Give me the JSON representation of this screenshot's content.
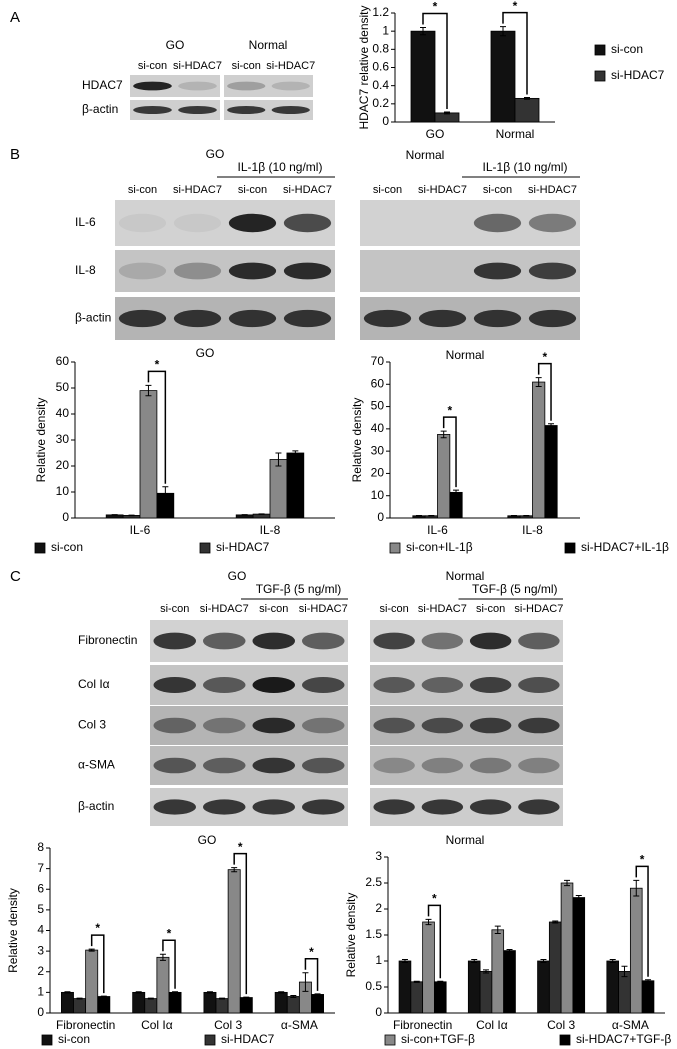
{
  "figure": {
    "panels": [
      "A",
      "B",
      "C"
    ],
    "blots": [
      {
        "groups": [
          {
            "label": "GO",
            "lanes": [
              "si-con",
              "si-HDAC7"
            ]
          },
          {
            "label": "Normal",
            "lanes": [
              "si-con",
              "si-HDAC7"
            ]
          }
        ],
        "rows": [
          "HDAC7",
          "β-actin"
        ]
      },
      {
        "groups": [
          {
            "label": "GO",
            "treatment": "IL-1β (10 ng/ml)",
            "lanes": [
              "si-con",
              "si-HDAC7",
              "si-con",
              "si-HDAC7"
            ]
          },
          {
            "label": "Normal",
            "treatment": "IL-1β (10 ng/ml)",
            "lanes": [
              "si-con",
              "si-HDAC7",
              "si-con",
              "si-HDAC7"
            ]
          }
        ],
        "rows": [
          "IL-6",
          "IL-8",
          "β-actin"
        ]
      },
      {
        "groups": [
          {
            "label": "GO",
            "treatment": "TGF-β (5 ng/ml)",
            "lanes": [
              "si-con",
              "si-HDAC7",
              "si-con",
              "si-HDAC7"
            ]
          },
          {
            "label": "Normal",
            "treatment": "TGF-β (5 ng/ml)",
            "lanes": [
              "si-con",
              "si-HDAC7",
              "si-con",
              "si-HDAC7"
            ]
          }
        ],
        "rows": [
          "Fibronectin",
          "Col Iα",
          "Col 3",
          "α-SMA",
          "β-actin"
        ]
      }
    ]
  },
  "chart_data": [
    {
      "type": "bar",
      "y_label": "HDAC7 relative density",
      "categories": [
        "GO",
        "Normal"
      ],
      "series": [
        {
          "name": "si-con",
          "color": "#111111",
          "values": [
            1.0,
            1.0
          ],
          "errors": [
            0.04,
            0.05
          ],
          "in_legend": true
        },
        {
          "name": "si-HDAC7",
          "color": "#333333",
          "values": [
            0.1,
            0.26
          ],
          "errors": [
            0.01,
            0.01
          ],
          "in_legend": true
        }
      ],
      "ylim": [
        0,
        1.2
      ],
      "yticks": [
        0,
        0.2,
        0.4,
        0.6,
        0.8,
        1,
        1.2
      ],
      "significance": [
        "*",
        "*"
      ]
    },
    {
      "type": "bar",
      "title": "GO",
      "y_label": "Relative density",
      "categories": [
        "IL-6",
        "IL-8"
      ],
      "series": [
        {
          "name": "si-con",
          "color": "#111111",
          "values": [
            1.2,
            1.2
          ],
          "errors": [
            0.1,
            0.1
          ],
          "in_legend": true
        },
        {
          "name": "si-HDAC7",
          "color": "#333333",
          "values": [
            1.0,
            1.5
          ],
          "errors": [
            0.1,
            0.1
          ],
          "in_legend": true
        },
        {
          "name": "si-con+IL-1β",
          "color": "#888888",
          "values": [
            49,
            22.5
          ],
          "errors": [
            2,
            2.5
          ],
          "in_legend": false
        },
        {
          "name": "si-HDAC7+IL-1β",
          "color": "#000000",
          "values": [
            9.5,
            25
          ],
          "errors": [
            2.5,
            0.8
          ],
          "in_legend": false
        }
      ],
      "ylim": [
        0,
        60
      ],
      "yticks": [
        0,
        10,
        20,
        30,
        40,
        50,
        60
      ],
      "significance": [
        "*",
        null
      ]
    },
    {
      "type": "bar",
      "title": "Normal",
      "y_label": "Relative density",
      "categories": [
        "IL-6",
        "IL-8"
      ],
      "series": [
        {
          "name": "si-con",
          "color": "#111111",
          "values": [
            1,
            1
          ],
          "errors": [
            0.1,
            0.1
          ],
          "in_legend": false
        },
        {
          "name": "si-HDAC7",
          "color": "#333333",
          "values": [
            1,
            1
          ],
          "errors": [
            0.1,
            0.1
          ],
          "in_legend": false
        },
        {
          "name": "si-con+IL-1β",
          "color": "#888888",
          "values": [
            37.5,
            61
          ],
          "errors": [
            1.5,
            2
          ],
          "in_legend": true
        },
        {
          "name": "si-HDAC7+IL-1β",
          "color": "#000000",
          "values": [
            11.5,
            41.5
          ],
          "errors": [
            1,
            0.8
          ],
          "in_legend": true
        }
      ],
      "ylim": [
        0,
        70
      ],
      "yticks": [
        0,
        10,
        20,
        30,
        40,
        50,
        60,
        70
      ],
      "significance": [
        "*",
        "*"
      ]
    },
    {
      "type": "bar",
      "title": "GO",
      "y_label": "Relative density",
      "categories": [
        "Fibronectin",
        "Col Iα",
        "Col 3",
        "α-SMA"
      ],
      "series": [
        {
          "name": "si-con",
          "color": "#111111",
          "values": [
            1,
            1,
            1,
            1
          ],
          "errors": [
            0.03,
            0.03,
            0.03,
            0.03
          ],
          "in_legend": true
        },
        {
          "name": "si-HDAC7",
          "color": "#333333",
          "values": [
            0.7,
            0.7,
            0.7,
            0.8
          ],
          "errors": [
            0.02,
            0.02,
            0.02,
            0.05
          ],
          "in_legend": true
        },
        {
          "name": "si-con+TGF-β",
          "color": "#888888",
          "values": [
            3.05,
            2.7,
            6.95,
            1.5
          ],
          "errors": [
            0.05,
            0.15,
            0.1,
            0.45
          ],
          "in_legend": false
        },
        {
          "name": "si-HDAC7+TGF-β",
          "color": "#000000",
          "values": [
            0.8,
            1.0,
            0.75,
            0.9
          ],
          "errors": [
            0.02,
            0.03,
            0.02,
            0.03
          ],
          "in_legend": false
        }
      ],
      "ylim": [
        0,
        8
      ],
      "yticks": [
        0,
        1,
        2,
        3,
        4,
        5,
        6,
        7,
        8
      ],
      "significance": [
        "*",
        "*",
        "*",
        "*"
      ]
    },
    {
      "type": "bar",
      "title": "Normal",
      "y_label": "Relative density",
      "categories": [
        "Fibronectin",
        "Col Iα",
        "Col 3",
        "α-SMA"
      ],
      "series": [
        {
          "name": "si-con",
          "color": "#111111",
          "values": [
            1,
            1,
            1,
            1
          ],
          "errors": [
            0.03,
            0.03,
            0.03,
            0.03
          ],
          "in_legend": false
        },
        {
          "name": "si-HDAC7",
          "color": "#333333",
          "values": [
            0.6,
            0.8,
            1.75,
            0.8
          ],
          "errors": [
            0.01,
            0.03,
            0.02,
            0.1
          ],
          "in_legend": false
        },
        {
          "name": "si-con+TGF-β",
          "color": "#888888",
          "values": [
            1.75,
            1.6,
            2.5,
            2.4
          ],
          "errors": [
            0.05,
            0.07,
            0.05,
            0.15
          ],
          "in_legend": true
        },
        {
          "name": "si-HDAC7+TGF-β",
          "color": "#000000",
          "values": [
            0.6,
            1.2,
            2.22,
            0.62
          ],
          "errors": [
            0.01,
            0.02,
            0.04,
            0.02
          ],
          "in_legend": true
        }
      ],
      "ylim": [
        0,
        3
      ],
      "yticks": [
        0,
        0.5,
        1,
        1.5,
        2,
        2.5,
        3
      ],
      "significance": [
        "*",
        null,
        null,
        "*"
      ]
    }
  ]
}
